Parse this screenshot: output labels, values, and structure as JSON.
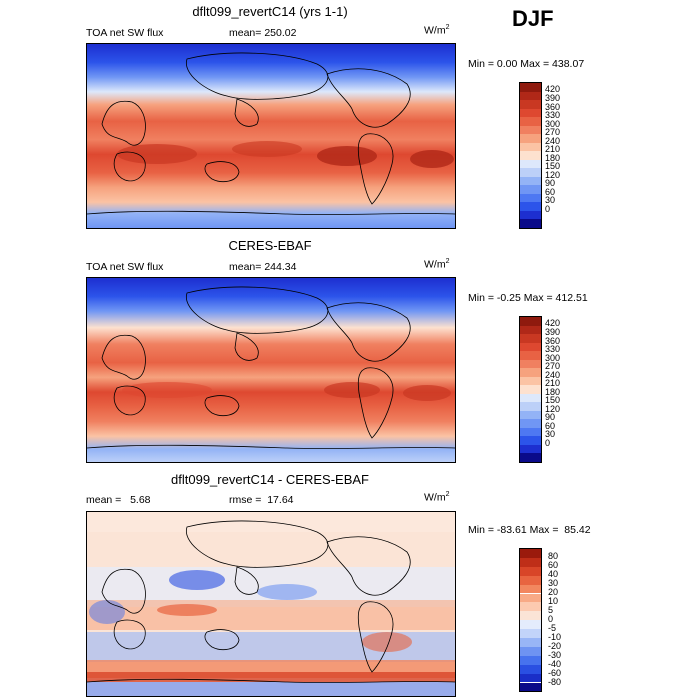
{
  "season": "DJF",
  "panels": [
    {
      "id": "model",
      "title": "dflt099_revertC14 (yrs 1-1)",
      "left_label": "TOA net SW flux",
      "stat_label": "mean= 250.02",
      "units_base": "W/m",
      "units_exp": "2",
      "minmax": "Min =    0.00 Max = 438.07",
      "colors": [
        "#0a0a8a",
        "#1d2fd0",
        "#2c54ea",
        "#4e78f2",
        "#7096f4",
        "#93b3f6",
        "#bcd0f8",
        "#dde8fb",
        "#fde1cf",
        "#fbc3a4",
        "#f6a27e",
        "#f08060",
        "#e86244",
        "#de4830",
        "#c93822",
        "#b02818",
        "#8f1a0e"
      ],
      "ticks": [
        "0",
        "30",
        "60",
        "90",
        "120",
        "150",
        "180",
        "210",
        "240",
        "270",
        "300",
        "330",
        "360",
        "390",
        "420"
      ]
    },
    {
      "id": "obs",
      "title": "CERES-EBAF",
      "left_label": "TOA net SW flux",
      "stat_label": "mean= 244.34",
      "units_base": "W/m",
      "units_exp": "2",
      "minmax": "Min =  -0.25 Max = 412.51",
      "colors": [
        "#0a0a8a",
        "#1d2fd0",
        "#2c54ea",
        "#4e78f2",
        "#7096f4",
        "#93b3f6",
        "#bcd0f8",
        "#dde8fb",
        "#fde1cf",
        "#fbc3a4",
        "#f6a27e",
        "#f08060",
        "#e86244",
        "#de4830",
        "#c93822",
        "#b02818",
        "#8f1a0e"
      ],
      "ticks": [
        "0",
        "30",
        "60",
        "90",
        "120",
        "150",
        "180",
        "210",
        "240",
        "270",
        "300",
        "330",
        "360",
        "390",
        "420"
      ]
    },
    {
      "id": "diff",
      "title": "dflt099_revertC14 - CERES-EBAF",
      "left_label": "mean =   5.68",
      "stat_label": "rmse =  17.64",
      "units_base": "W/m",
      "units_exp": "2",
      "minmax": "Min = -83.61 Max =  85.42",
      "colors": [
        "#0a0a8a",
        "#1a2ec8",
        "#2a4fe2",
        "#4772ee",
        "#6e93f2",
        "#98b5f6",
        "#c2d4fa",
        "#e4ecfc",
        "#fbe4d6",
        "#fccab0",
        "#f8aa86",
        "#f2875f",
        "#e86440",
        "#d84528",
        "#bf2e18",
        "#9a1a0c"
      ],
      "ticks": [
        "-80",
        "-60",
        "-40",
        "-30",
        "-20",
        "-10",
        "-5",
        "0",
        "5",
        "10",
        "20",
        "30",
        "40",
        "60",
        "80"
      ]
    }
  ]
}
